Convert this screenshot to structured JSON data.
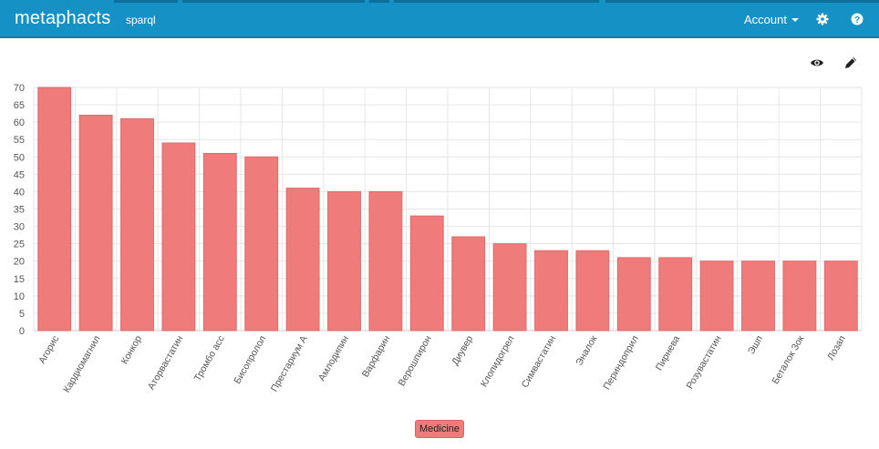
{
  "app": {
    "brand": "metaphacts",
    "nav_link": "sparql",
    "account_label": "Account",
    "icons": [
      "gear-icon",
      "help-icon",
      "eye-icon",
      "pencil-icon"
    ]
  },
  "colors": {
    "navbar": "#1591c6",
    "bar_fill": "#f07b7b",
    "bar_stroke": "#e06a6a",
    "grid": "#e6e6e6",
    "axis_text": "#555555"
  },
  "chart_data": {
    "type": "bar",
    "title": "",
    "xlabel": "",
    "ylabel": "",
    "ylim": [
      0,
      70
    ],
    "yticks": [
      0,
      5,
      10,
      15,
      20,
      25,
      30,
      35,
      40,
      45,
      50,
      55,
      60,
      65,
      70
    ],
    "grid": true,
    "legend_position": "bottom-center",
    "categories": [
      "Агорис",
      "Кардиомагнил",
      "Конкор",
      "Аторвастатин",
      "Тромбо асс",
      "Бисопролол",
      "Престариум А",
      "Амлодипин",
      "Варфарин",
      "Верошпирон",
      "Диувер",
      "Клопидогрел",
      "Симвастатин",
      "Эналок",
      "Периндоприл",
      "Пирнева",
      "Розувастатин",
      "Эшп",
      "Беталок Зок",
      "Лозап"
    ],
    "series": [
      {
        "name": "Medicine",
        "values": [
          70,
          62,
          61,
          54,
          51,
          50,
          41,
          40,
          40,
          33,
          27,
          25,
          23,
          23,
          21,
          21,
          20,
          20,
          20,
          20
        ]
      }
    ]
  }
}
